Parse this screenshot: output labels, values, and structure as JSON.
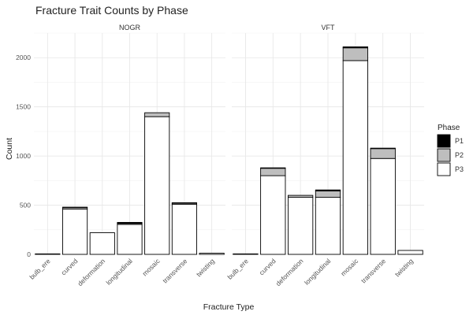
{
  "chart_data": {
    "type": "bar",
    "stacked": true,
    "title": "Fracture Trait Counts by Phase",
    "xlabel": "Fracture Type",
    "ylabel": "Count",
    "ylim": [
      0,
      2250
    ],
    "yticks": [
      0,
      500,
      1000,
      1500,
      2000
    ],
    "grid": true,
    "legend": {
      "title": "Phase",
      "position": "right",
      "entries": [
        "P1",
        "P2",
        "P3"
      ]
    },
    "categories": [
      "bulb_ere",
      "curved",
      "deformation",
      "longitudinal",
      "mosaic",
      "transverse",
      "twisting"
    ],
    "colors": {
      "P1": "#000000",
      "P2": "#bebebe",
      "P3": "#ffffff"
    },
    "panels": [
      {
        "name": "NOGR",
        "series": [
          {
            "name": "P1",
            "values": [
              0,
              5,
              0,
              10,
              0,
              5,
              0
            ]
          },
          {
            "name": "P2",
            "values": [
              0,
              15,
              0,
              10,
              40,
              10,
              0
            ]
          },
          {
            "name": "P3",
            "values": [
              5,
              460,
              220,
              305,
              1400,
              510,
              12
            ]
          }
        ]
      },
      {
        "name": "VFT",
        "series": [
          {
            "name": "P1",
            "values": [
              0,
              5,
              0,
              10,
              10,
              5,
              0
            ]
          },
          {
            "name": "P2",
            "values": [
              0,
              75,
              20,
              65,
              130,
              100,
              0
            ]
          },
          {
            "name": "P3",
            "values": [
              5,
              800,
              580,
              580,
              1970,
              975,
              40
            ]
          }
        ]
      }
    ]
  }
}
